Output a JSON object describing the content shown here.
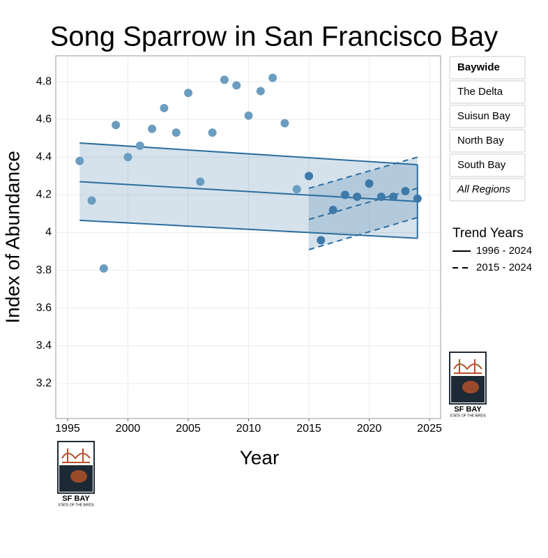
{
  "chart_data": {
    "type": "scatter",
    "title": "Song Sparrow in San Francisco Bay",
    "xlabel": "Year",
    "ylabel": "Index of Abundance",
    "x": [
      1996,
      1997,
      1998,
      1999,
      2000,
      2001,
      2002,
      2003,
      2004,
      2005,
      2006,
      2007,
      2008,
      2009,
      2010,
      2011,
      2012,
      2013,
      2014,
      2015,
      2016,
      2017,
      2018,
      2019,
      2020,
      2021,
      2022,
      2023,
      2024
    ],
    "values": [
      4.38,
      4.17,
      3.81,
      4.57,
      4.4,
      4.46,
      4.55,
      4.66,
      4.53,
      4.74,
      4.27,
      4.53,
      4.81,
      4.78,
      4.62,
      4.75,
      4.82,
      4.58,
      4.23,
      4.3,
      3.96,
      4.12,
      4.2,
      4.19,
      4.26,
      4.19,
      4.19,
      4.22,
      4.18
    ],
    "point_colors": [
      "#6b9dc0",
      "#6b9dc0",
      "#6b9dc0",
      "#6b9dc0",
      "#6b9dc0",
      "#6b9dc0",
      "#6b9dc0",
      "#6b9dc0",
      "#6b9dc0",
      "#6b9dc0",
      "#6b9dc0",
      "#6b9dc0",
      "#6b9dc0",
      "#6b9dc0",
      "#6b9dc0",
      "#6b9dc0",
      "#6b9dc0",
      "#6b9dc0",
      "#6b9dc0",
      "#3d79a9",
      "#3d79a9",
      "#3d79a9",
      "#3d79a9",
      "#3d79a9",
      "#3d79a9",
      "#3d79a9",
      "#3d79a9",
      "#3d79a9",
      "#3d79a9"
    ],
    "xlim": [
      1994.02,
      2025.92
    ],
    "ylim": [
      3.015,
      4.937
    ],
    "xticks": [
      1995,
      2000,
      2005,
      2010,
      2015,
      2020,
      2025
    ],
    "yticks": [
      3.2,
      3.4,
      3.6,
      3.8,
      4,
      4.2,
      4.4,
      4.6,
      4.8
    ],
    "grid": true,
    "legend_title": "Trend Years",
    "trends": [
      {
        "name": "1996 - 2024",
        "dashed": false,
        "color": "#2b6d9e",
        "x": [
          1996,
          2024
        ],
        "mid": [
          4.27,
          4.165
        ],
        "upper": [
          4.475,
          4.36
        ],
        "lower": [
          4.065,
          3.97
        ]
      },
      {
        "name": "2015 - 2024",
        "dashed": true,
        "color": "#2b6d9e",
        "x": [
          2015,
          2024
        ],
        "mid": [
          4.07,
          4.235
        ],
        "upper": [
          4.235,
          4.4
        ],
        "lower": [
          3.91,
          4.08
        ]
      }
    ]
  },
  "regions": [
    "Baywide",
    "The Delta",
    "Suisun Bay",
    "North Bay",
    "South Bay",
    "All Regions"
  ],
  "logo": {
    "title": "SF BAY",
    "subtitle": "STATE OF THE BIRDS"
  }
}
